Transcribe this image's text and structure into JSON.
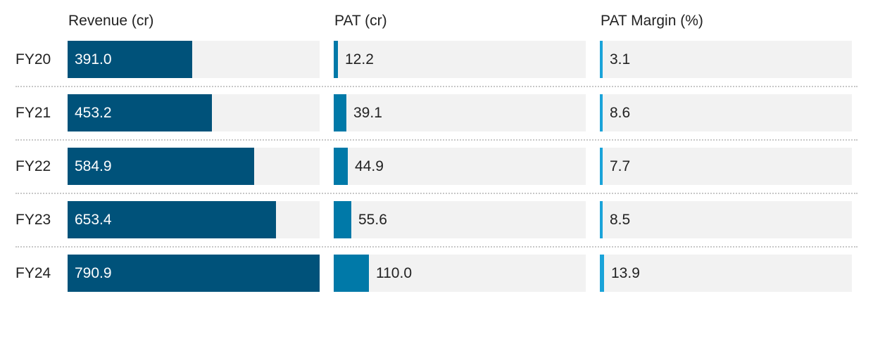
{
  "chart_data": {
    "type": "bar",
    "orientation": "horizontal",
    "categories": [
      "FY20",
      "FY21",
      "FY22",
      "FY23",
      "FY24"
    ],
    "series": [
      {
        "name": "Revenue (cr)",
        "values": [
          391.0,
          453.2,
          584.9,
          653.4,
          790.9
        ],
        "labels": [
          "391.0",
          "453.2",
          "584.9",
          "653.4",
          "790.9"
        ],
        "color": "#00527a",
        "xlim": [
          0,
          790.9
        ]
      },
      {
        "name": "PAT (cr)",
        "values": [
          12.2,
          39.1,
          44.9,
          55.6,
          110.0
        ],
        "labels": [
          "12.2",
          "39.1",
          "44.9",
          "55.6",
          "110.0"
        ],
        "color": "#0079a8",
        "xlim": [
          0,
          790.9
        ]
      },
      {
        "name": "PAT Margin (%)",
        "values": [
          3.1,
          8.6,
          7.7,
          8.5,
          13.9
        ],
        "labels": [
          "3.1",
          "8.6",
          "7.7",
          "8.5",
          "13.9"
        ],
        "color": "#1aa3d9",
        "xlim": [
          0,
          790.9
        ]
      }
    ],
    "track_color": "#f2f2f2",
    "grid": false,
    "legend": "none"
  }
}
